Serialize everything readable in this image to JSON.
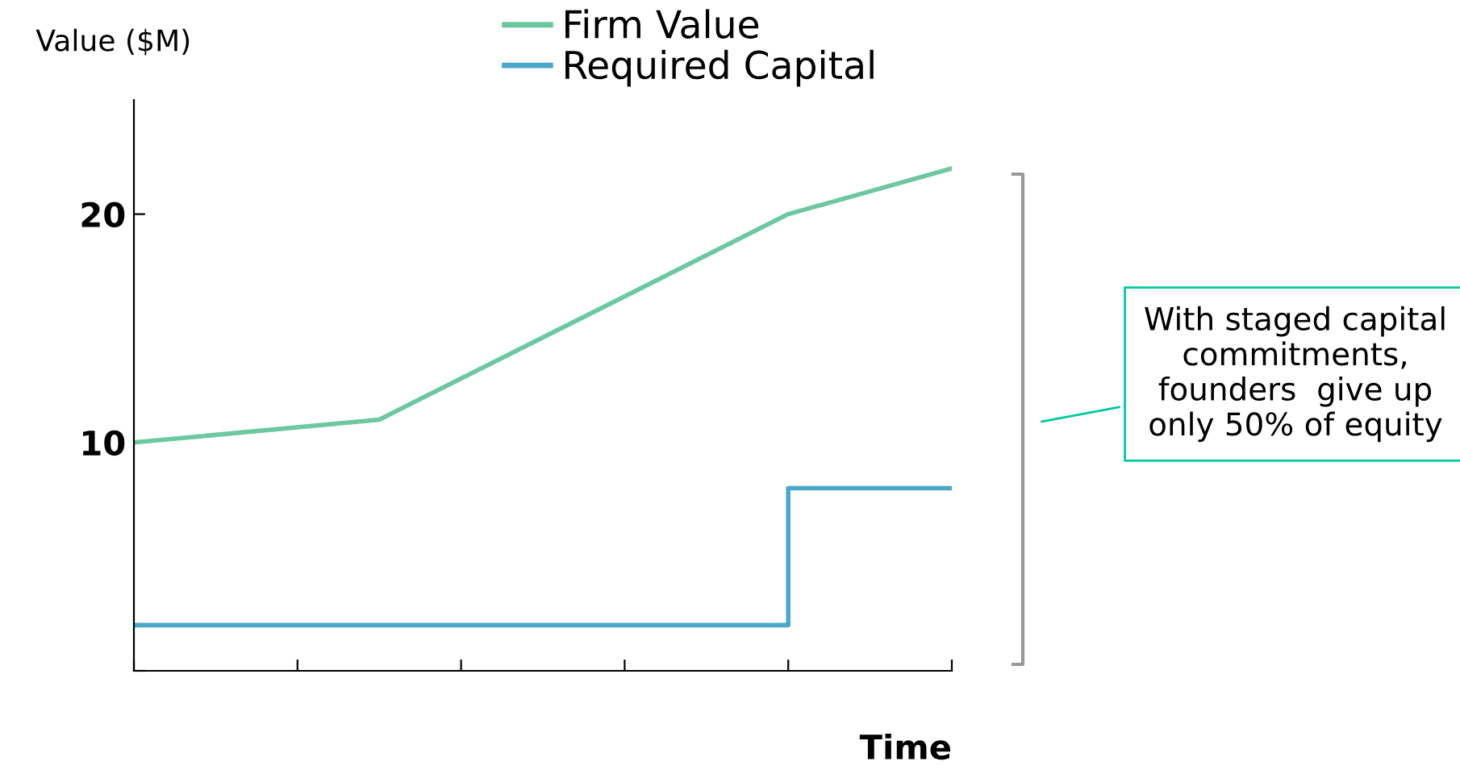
{
  "chart_data": {
    "type": "line",
    "ylabel": "Value ($M)",
    "xlabel": "Time",
    "categories": [
      null,
      null,
      null,
      null,
      null,
      null,
      null,
      null,
      null,
      null,
      null
    ],
    "ylim": [
      0,
      25
    ],
    "yticks": [
      {
        "value": 0,
        "label": null
      },
      10,
      20
    ],
    "series": [
      {
        "name": "Firm Value",
        "color": "#6cc8a0",
        "values": [
          10,
          null,
          null,
          11,
          null,
          null,
          null,
          null,
          20,
          null,
          22
        ]
      },
      {
        "name": "Required Capital",
        "type": "step",
        "color": "#4aa8c8",
        "values": [
          2,
          2,
          2,
          2,
          2,
          2,
          2,
          2,
          8,
          8,
          8
        ]
      }
    ],
    "annotations": [
      "With staged capital commitments, founders  give up only 50% of equity"
    ],
    "legend": "top",
    "grid": false,
    "marker": "none",
    "line_style": "solid"
  }
}
